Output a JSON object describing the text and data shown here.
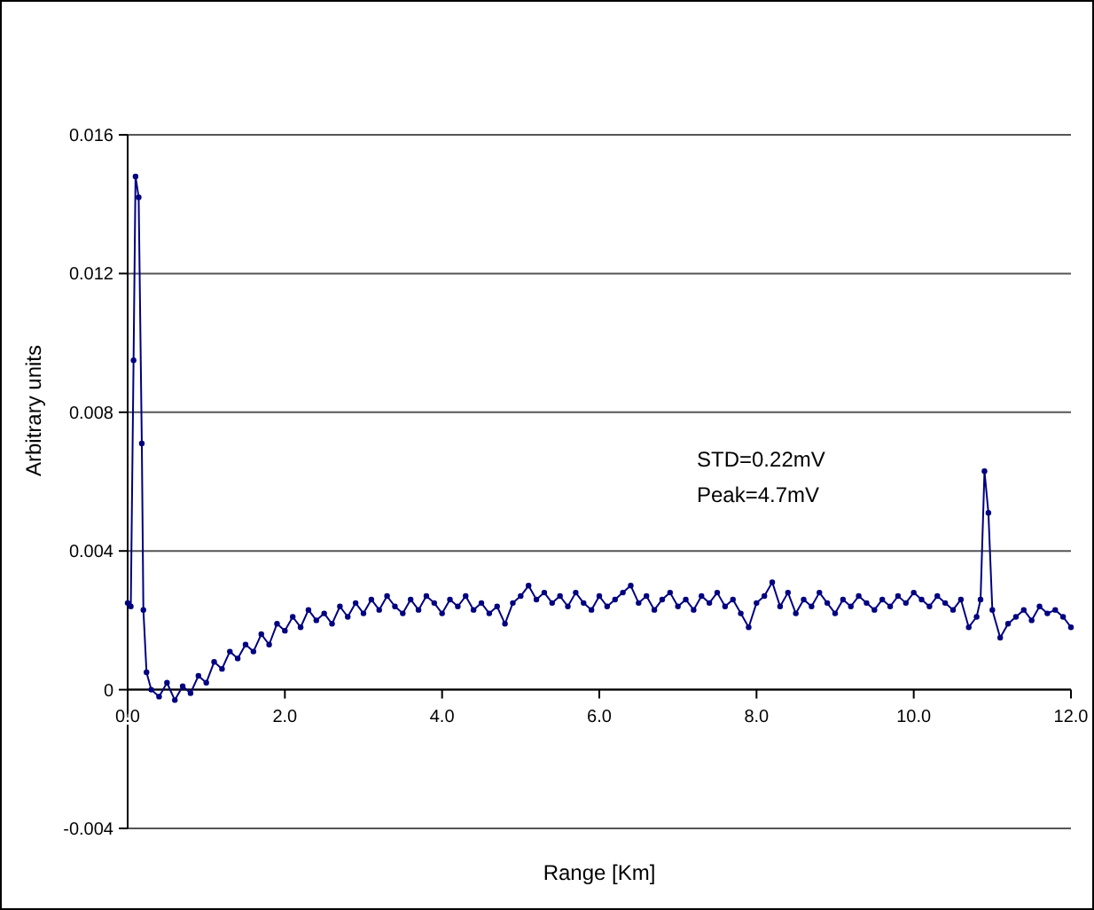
{
  "chart_data": {
    "type": "line",
    "xlabel": "Range [Km]",
    "ylabel": "Arbitrary units",
    "annotations": [
      "STD=0.22mV",
      "Peak=4.7mV"
    ],
    "xlim": [
      0,
      12
    ],
    "xticks": [
      {
        "value": 0,
        "label": "0.0"
      },
      {
        "value": 2,
        "label": "2.0"
      },
      {
        "value": 4,
        "label": "4.0"
      },
      {
        "value": 6,
        "label": "6.0"
      },
      {
        "value": 8,
        "label": "8.0"
      },
      {
        "value": 10,
        "label": "10.0"
      },
      {
        "value": 12,
        "label": "12.0"
      }
    ],
    "ylim": [
      -0.004,
      0.016
    ],
    "yticks": [
      -0.004,
      0,
      0.004,
      0.008,
      0.012,
      0.016
    ],
    "grid": "y",
    "marker": "circle",
    "line_style": "solid",
    "series": [
      {
        "color": "#000080",
        "x": [
          0,
          0.04,
          0.075,
          0.1,
          0.14,
          0.18,
          0.2,
          0.24,
          0.3,
          0.4,
          0.5,
          0.6,
          0.7,
          0.8,
          0.9,
          1.0,
          1.1,
          1.2,
          1.3,
          1.4,
          1.5,
          1.6,
          1.7,
          1.8,
          1.9,
          2.0,
          2.1,
          2.2,
          2.3,
          2.4,
          2.5,
          2.6,
          2.7,
          2.8,
          2.9,
          3.0,
          3.1,
          3.2,
          3.3,
          3.4,
          3.5,
          3.6,
          3.7,
          3.8,
          3.9,
          4.0,
          4.1,
          4.2,
          4.3,
          4.4,
          4.5,
          4.6,
          4.7,
          4.8,
          4.9,
          5.0,
          5.1,
          5.2,
          5.3,
          5.4,
          5.5,
          5.6,
          5.7,
          5.8,
          5.9,
          6.0,
          6.1,
          6.2,
          6.3,
          6.4,
          6.5,
          6.6,
          6.7,
          6.8,
          6.9,
          7.0,
          7.1,
          7.2,
          7.3,
          7.4,
          7.5,
          7.6,
          7.7,
          7.8,
          7.9,
          8.0,
          8.1,
          8.2,
          8.3,
          8.4,
          8.5,
          8.6,
          8.7,
          8.8,
          8.9,
          9.0,
          9.1,
          9.2,
          9.3,
          9.4,
          9.5,
          9.6,
          9.7,
          9.8,
          9.9,
          10.0,
          10.1,
          10.2,
          10.3,
          10.4,
          10.5,
          10.6,
          10.7,
          10.8,
          10.85,
          10.9,
          10.95,
          11.0,
          11.1,
          11.2,
          11.3,
          11.4,
          11.5,
          11.6,
          11.7,
          11.8,
          11.9,
          12.0
        ],
        "values": [
          0.0025,
          0.0024,
          0.0095,
          0.0148,
          0.0142,
          0.0071,
          0.0023,
          0.0005,
          0.0,
          -0.0002,
          0.0002,
          -0.0003,
          0.0001,
          -0.0001,
          0.0004,
          0.0002,
          0.0008,
          0.0006,
          0.0011,
          0.0009,
          0.0013,
          0.0011,
          0.0016,
          0.0013,
          0.0019,
          0.0017,
          0.0021,
          0.0018,
          0.0023,
          0.002,
          0.0022,
          0.0019,
          0.0024,
          0.0021,
          0.0025,
          0.0022,
          0.0026,
          0.0023,
          0.0027,
          0.0024,
          0.0022,
          0.0026,
          0.0023,
          0.0027,
          0.0025,
          0.0022,
          0.0026,
          0.0024,
          0.0027,
          0.0023,
          0.0025,
          0.0022,
          0.0024,
          0.0019,
          0.0025,
          0.0027,
          0.003,
          0.0026,
          0.0028,
          0.0025,
          0.0027,
          0.0024,
          0.0028,
          0.0025,
          0.0023,
          0.0027,
          0.0024,
          0.0026,
          0.0028,
          0.003,
          0.0025,
          0.0027,
          0.0023,
          0.0026,
          0.0028,
          0.0024,
          0.0026,
          0.0023,
          0.0027,
          0.0025,
          0.0028,
          0.0024,
          0.0026,
          0.0022,
          0.0018,
          0.0025,
          0.0027,
          0.0031,
          0.0024,
          0.0028,
          0.0022,
          0.0026,
          0.0024,
          0.0028,
          0.0025,
          0.0022,
          0.0026,
          0.0024,
          0.0027,
          0.0025,
          0.0023,
          0.0026,
          0.0024,
          0.0027,
          0.0025,
          0.0028,
          0.0026,
          0.0024,
          0.0027,
          0.0025,
          0.0023,
          0.0026,
          0.0018,
          0.0021,
          0.0026,
          0.0063,
          0.0051,
          0.0023,
          0.0015,
          0.0019,
          0.0021,
          0.0023,
          0.002,
          0.0024,
          0.0022,
          0.0023,
          0.0021,
          0.0018
        ]
      }
    ]
  }
}
